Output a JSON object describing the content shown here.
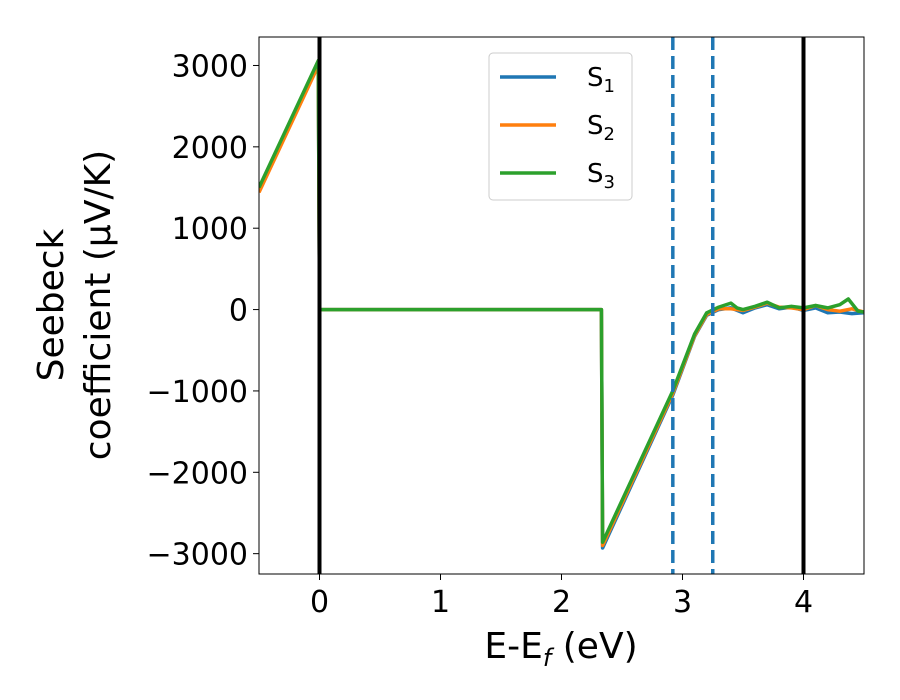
{
  "chart_data": {
    "type": "line",
    "xlabel_main": "E-E",
    "xlabel_sub": "f",
    "xlabel_unit": " (eV)",
    "ylabel_line1": "Seebeck",
    "ylabel_line2": "coefficient  (μV/K)",
    "xlim": [
      -0.5,
      4.5
    ],
    "ylim": [
      -3250,
      3350
    ],
    "xticks": [
      0,
      1,
      2,
      3,
      4
    ],
    "xtick_labels": [
      "0",
      "1",
      "2",
      "3",
      "4"
    ],
    "yticks": [
      3000,
      2000,
      1000,
      0,
      -1000,
      -2000,
      -3000
    ],
    "ytick_labels": [
      "3000",
      "2000",
      "1000",
      "0",
      "−1000",
      "−2000",
      "−3000"
    ],
    "grid": false,
    "legend_position": "top-center",
    "vertical_lines": [
      {
        "x": 0,
        "style": "solid",
        "color": "#000000"
      },
      {
        "x": 4,
        "style": "solid",
        "color": "#000000"
      },
      {
        "x": 2.92,
        "style": "dashed",
        "color": "#1f77b4"
      },
      {
        "x": 3.25,
        "style": "dashed",
        "color": "#1f77b4"
      }
    ],
    "series": [
      {
        "name": "S",
        "subscript": "1",
        "color": "#1f77b4",
        "points": [
          [
            -0.5,
            1480
          ],
          [
            -0.01,
            3030
          ],
          [
            0,
            0
          ],
          [
            2.33,
            0
          ],
          [
            2.34,
            -2930
          ],
          [
            2.92,
            -1050
          ],
          [
            3.1,
            -330
          ],
          [
            3.2,
            -70
          ],
          [
            3.3,
            0
          ],
          [
            3.4,
            20
          ],
          [
            3.5,
            -40
          ],
          [
            3.6,
            20
          ],
          [
            3.7,
            60
          ],
          [
            3.8,
            10
          ],
          [
            3.9,
            30
          ],
          [
            4.0,
            -10
          ],
          [
            4.1,
            20
          ],
          [
            4.2,
            -40
          ],
          [
            4.3,
            -30
          ],
          [
            4.4,
            -50
          ],
          [
            4.5,
            -40
          ]
        ]
      },
      {
        "name": "S",
        "subscript": "2",
        "color": "#ff7f0e",
        "points": [
          [
            -0.5,
            1440
          ],
          [
            -0.01,
            3000
          ],
          [
            0,
            0
          ],
          [
            2.33,
            0
          ],
          [
            2.34,
            -2900
          ],
          [
            2.92,
            -1030
          ],
          [
            3.1,
            -320
          ],
          [
            3.2,
            -60
          ],
          [
            3.3,
            10
          ],
          [
            3.4,
            10
          ],
          [
            3.5,
            -10
          ],
          [
            3.6,
            30
          ],
          [
            3.7,
            80
          ],
          [
            3.8,
            30
          ],
          [
            3.9,
            20
          ],
          [
            4.0,
            0
          ],
          [
            4.1,
            50
          ],
          [
            4.2,
            0
          ],
          [
            4.3,
            -20
          ],
          [
            4.4,
            10
          ],
          [
            4.5,
            -30
          ]
        ]
      },
      {
        "name": "S",
        "subscript": "3",
        "color": "#2ca02c",
        "points": [
          [
            -0.5,
            1500
          ],
          [
            -0.01,
            3060
          ],
          [
            0,
            0
          ],
          [
            2.33,
            0
          ],
          [
            2.34,
            -2860
          ],
          [
            2.92,
            -1000
          ],
          [
            3.1,
            -300
          ],
          [
            3.2,
            -40
          ],
          [
            3.3,
            30
          ],
          [
            3.4,
            80
          ],
          [
            3.45,
            20
          ],
          [
            3.5,
            0
          ],
          [
            3.6,
            40
          ],
          [
            3.7,
            90
          ],
          [
            3.8,
            20
          ],
          [
            3.9,
            40
          ],
          [
            4.0,
            20
          ],
          [
            4.1,
            50
          ],
          [
            4.2,
            20
          ],
          [
            4.3,
            60
          ],
          [
            4.37,
            130
          ],
          [
            4.45,
            -20
          ],
          [
            4.5,
            -30
          ]
        ]
      }
    ]
  }
}
